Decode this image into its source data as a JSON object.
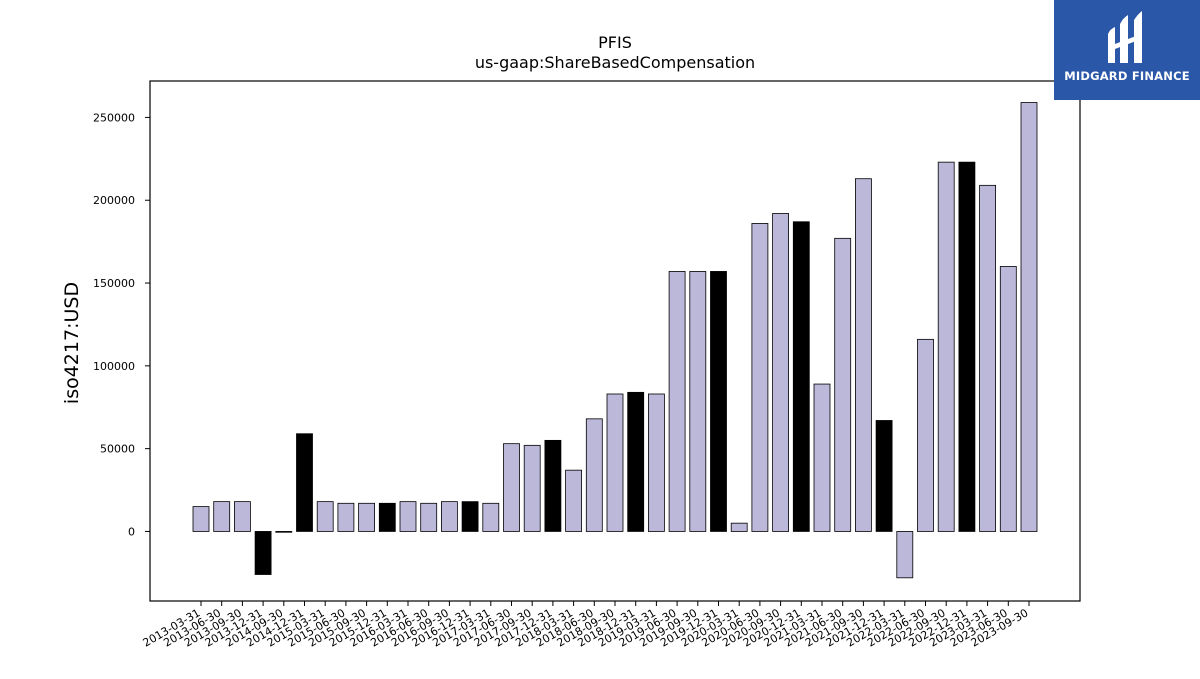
{
  "chart_data": {
    "type": "bar",
    "title": "PFIS",
    "subtitle": "us-gaap:ShareBasedCompensation",
    "ylabel": "iso4217:USD",
    "xlabel": "",
    "ylim": [
      -42000,
      272000
    ],
    "yticks": [
      0,
      50000,
      100000,
      150000,
      200000,
      250000
    ],
    "ytick_labels": [
      "0",
      "50000",
      "100000",
      "150000",
      "200000",
      "250000"
    ],
    "colors": {
      "quarter": "#bcb8da",
      "annual": "#000000",
      "edge": "#000000"
    },
    "categories": [
      "2013-03-31",
      "2013-06-30",
      "2013-09-30",
      "2013-12-31",
      "2014-09-30",
      "2014-12-31",
      "2015-03-31",
      "2015-06-30",
      "2015-09-30",
      "2015-12-31",
      "2016-03-31",
      "2016-06-30",
      "2016-09-30",
      "2016-12-31",
      "2017-03-31",
      "2017-06-30",
      "2017-09-30",
      "2017-12-31",
      "2018-03-31",
      "2018-06-30",
      "2018-09-30",
      "2018-12-31",
      "2019-03-31",
      "2019-06-30",
      "2019-09-30",
      "2019-12-31",
      "2020-03-31",
      "2020-06-30",
      "2020-09-30",
      "2020-12-31",
      "2021-03-31",
      "2021-06-30",
      "2021-09-30",
      "2021-12-31",
      "2022-03-31",
      "2022-06-30",
      "2022-09-30",
      "2022-12-31",
      "2023-03-31",
      "2023-06-30",
      "2023-09-30"
    ],
    "values": [
      15000,
      18000,
      18000,
      -26000,
      0,
      59000,
      18000,
      17000,
      17000,
      17000,
      18000,
      17000,
      18000,
      18000,
      17000,
      53000,
      52000,
      55000,
      37000,
      68000,
      83000,
      84000,
      83000,
      157000,
      157000,
      157000,
      5000,
      186000,
      192000,
      187000,
      89000,
      177000,
      213000,
      67000,
      -28000,
      116000,
      223000,
      223000,
      209000,
      160000,
      259000
    ],
    "annual": [
      false,
      false,
      false,
      true,
      false,
      true,
      false,
      false,
      false,
      true,
      false,
      false,
      false,
      true,
      false,
      false,
      false,
      true,
      false,
      false,
      false,
      true,
      false,
      false,
      false,
      true,
      false,
      false,
      false,
      true,
      false,
      false,
      false,
      true,
      false,
      false,
      false,
      true,
      false,
      false,
      false
    ]
  },
  "logo": {
    "text": "MIDGARD FINANCE",
    "color": "#2b57a8"
  }
}
